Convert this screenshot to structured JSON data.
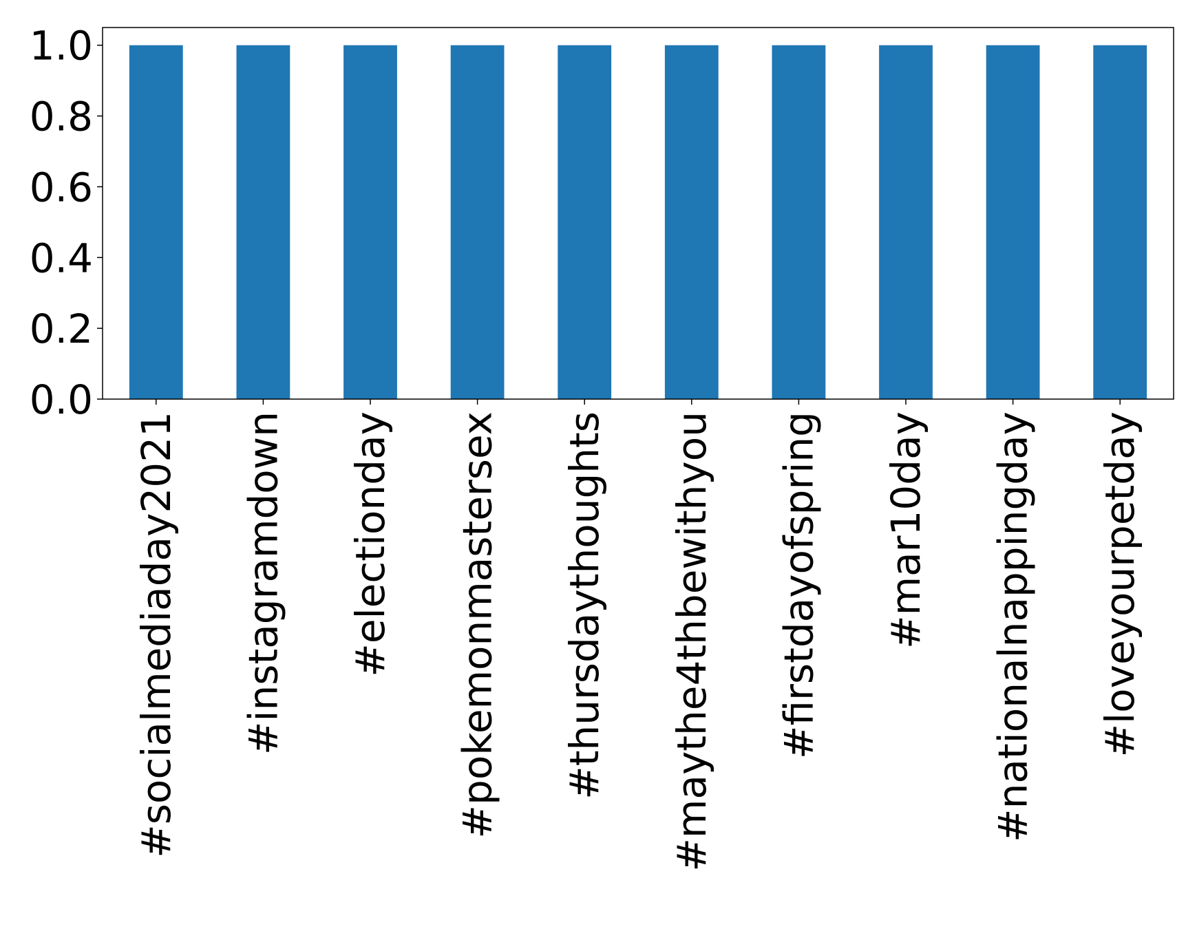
{
  "chart_data": {
    "type": "bar",
    "title": "",
    "xlabel": "",
    "ylabel": "",
    "categories": [
      "#socialmediaday2021",
      "#instagramdown",
      "#electionday",
      "#pokemonmastersex",
      "#thursdaythoughts",
      "#maythe4thbewithyou",
      "#firstdayofspring",
      "#mar10day",
      "#nationalnappingday",
      "#loveyourpetday"
    ],
    "values": [
      1.0,
      1.0,
      1.0,
      1.0,
      1.0,
      1.0,
      1.0,
      1.0,
      1.0,
      1.0
    ],
    "ylim": [
      0.0,
      1.05
    ],
    "yticks": [
      "0.0",
      "0.2",
      "0.4",
      "0.6",
      "0.8",
      "1.0"
    ],
    "bar_color": "#1f77b4",
    "grid": false,
    "legend": "none"
  }
}
